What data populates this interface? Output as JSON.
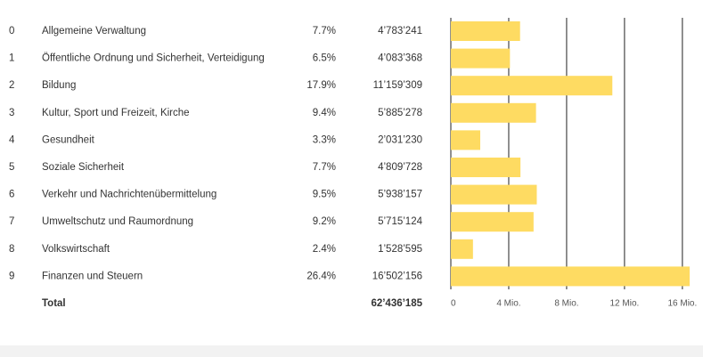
{
  "chart_data": {
    "type": "bar",
    "codes": [
      0,
      1,
      2,
      3,
      4,
      5,
      6,
      7,
      8,
      9
    ],
    "categories": [
      "Allgemeine Verwaltung",
      "Öffentliche Ordnung und Sicherheit, Verteidigung",
      "Bildung",
      "Kultur, Sport und Freizeit, Kirche",
      "Gesundheit",
      "Soziale Sicherheit",
      "Verkehr und Nachrichtenübermittelung",
      "Umweltschutz und Raumordnung",
      "Volkswirtschaft",
      "Finanzen und Steuern"
    ],
    "shares": [
      7.7,
      6.5,
      17.9,
      9.4,
      3.3,
      7.7,
      9.5,
      9.2,
      2.4,
      26.4
    ],
    "share_labels": [
      "7.7%",
      "6.5%",
      "17.9%",
      "9.4%",
      "3.3%",
      "7.7%",
      "9.5%",
      "9.2%",
      "2.4%",
      "26.4%"
    ],
    "values": [
      4783241,
      4083368,
      11159309,
      5885278,
      2031230,
      4809728,
      5938157,
      5715124,
      1528595,
      16502156
    ],
    "value_labels": [
      "4’783’241",
      "4’083’368",
      "11’159’309",
      "5’885’278",
      "2’031’230",
      "4’809’728",
      "5’938’157",
      "5’715’124",
      "1’528’595",
      "16’502’156"
    ],
    "total_name": "Total",
    "total": 62436185,
    "total_label": "62’436’185",
    "color": "#fedb62",
    "xlim": [
      0,
      16500000
    ],
    "xticks": [
      0,
      {
        "value": 4000000,
        "label": "4 Mio."
      },
      {
        "value": 8000000,
        "label": "8 Mio."
      },
      {
        "value": 12000000,
        "label": "12 Mio."
      },
      {
        "value": 16000000,
        "label": "16 Mio."
      }
    ],
    "grid": true
  }
}
